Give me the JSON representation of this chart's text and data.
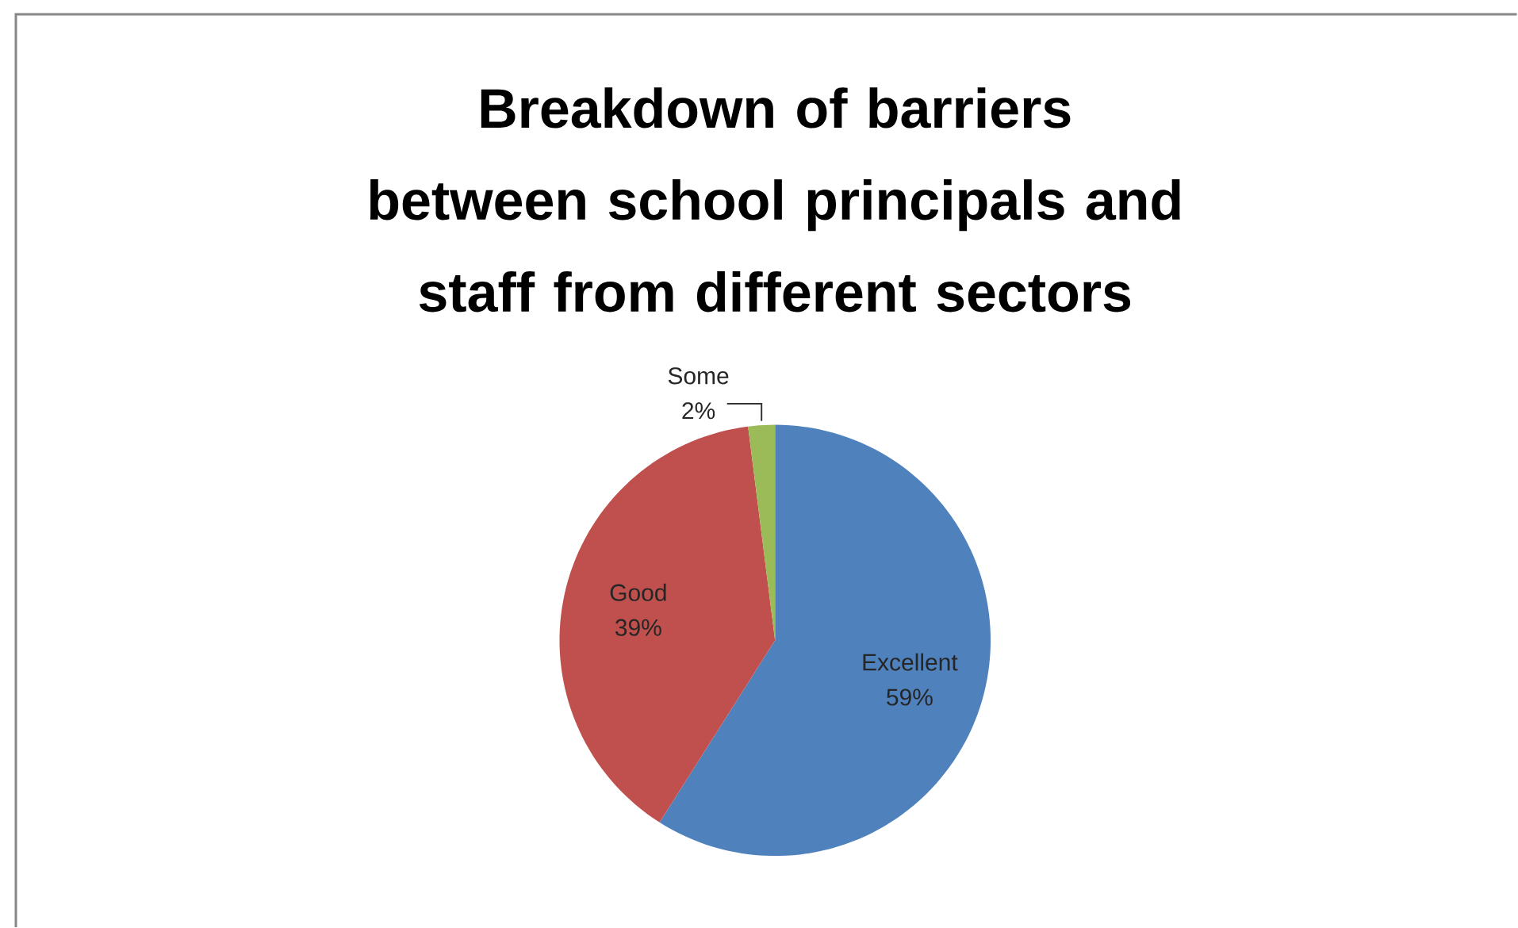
{
  "chart_data": {
    "type": "pie",
    "title": "Breakdown of barriers between school principals and staff from different sectors",
    "categories": [
      "Excellent",
      "Good",
      "Some"
    ],
    "values": [
      59,
      39,
      2
    ],
    "value_labels": [
      "59%",
      "39%",
      "2%"
    ],
    "colors": [
      "#4f81bd",
      "#c0504d",
      "#9bbb59"
    ]
  }
}
